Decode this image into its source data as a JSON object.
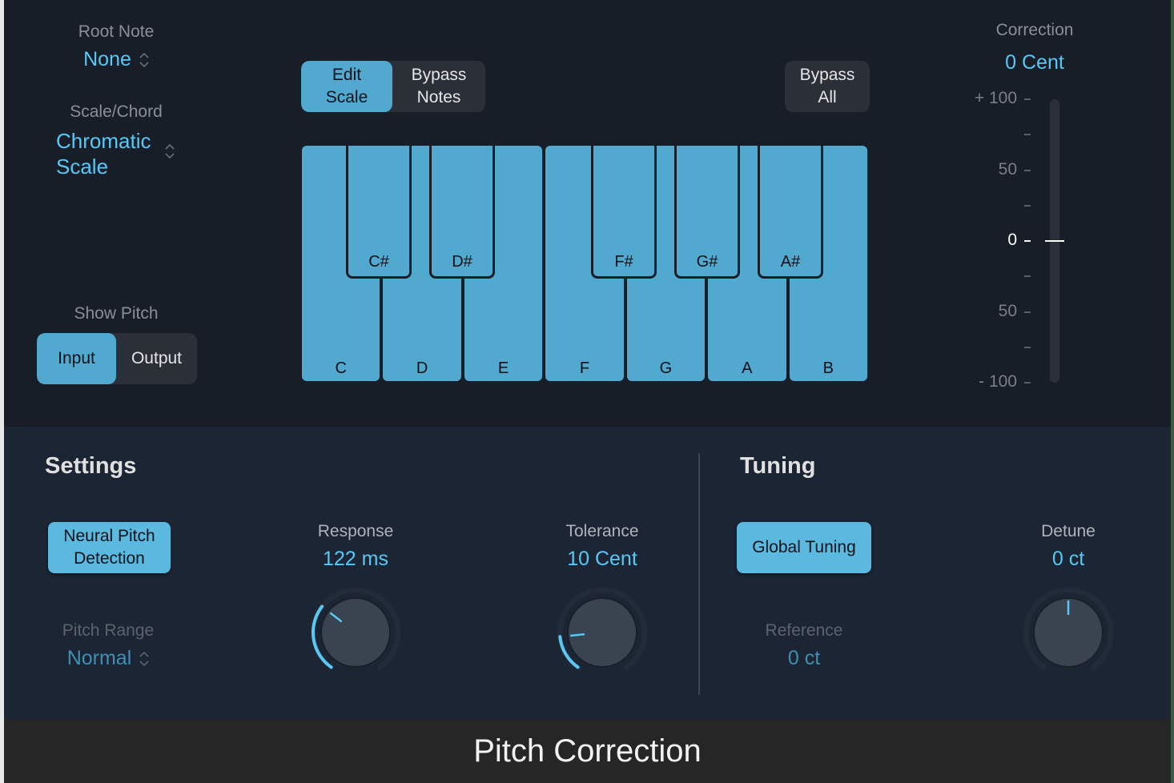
{
  "root_note": {
    "label": "Root Note",
    "value": "None"
  },
  "scale_chord": {
    "label": "Scale/Chord",
    "value_line1": "Chromatic",
    "value_line2": "Scale"
  },
  "show_pitch": {
    "label": "Show Pitch",
    "options": [
      "Input",
      "Output"
    ],
    "selected": "Input"
  },
  "mode": {
    "edit_l1": "Edit",
    "edit_l2": "Scale",
    "bypass_l1": "Bypass",
    "bypass_l2": "Notes",
    "selected": "Edit Scale"
  },
  "bypass_all": {
    "l1": "Bypass",
    "l2": "All"
  },
  "keyboard": {
    "white": [
      "C",
      "D",
      "E",
      "F",
      "G",
      "A",
      "B"
    ],
    "black": [
      "C#",
      "D#",
      "F#",
      "G#",
      "A#"
    ]
  },
  "correction": {
    "label": "Correction",
    "value": "0 Cent",
    "ticks": [
      "+ 100",
      "50",
      "0",
      "50",
      "- 100"
    ],
    "current": 0
  },
  "settings": {
    "title": "Settings",
    "neural_l1": "Neural Pitch",
    "neural_l2": "Detection",
    "pitch_range_label": "Pitch Range",
    "pitch_range_value": "Normal",
    "response": {
      "label": "Response",
      "value": "122 ms",
      "knob_fraction": 0.32
    },
    "tolerance": {
      "label": "Tolerance",
      "value": "10 Cent",
      "knob_fraction": 0.17
    }
  },
  "tuning": {
    "title": "Tuning",
    "global": "Global Tuning",
    "reference_label": "Reference",
    "reference_value": "0 ct",
    "detune": {
      "label": "Detune",
      "value": "0 ct",
      "knob_fraction": 0.5
    }
  },
  "footer": {
    "title": "Pitch Correction"
  },
  "colors": {
    "accent": "#5ac8f5",
    "key": "#52a9cf",
    "button": "#5bb9df"
  }
}
